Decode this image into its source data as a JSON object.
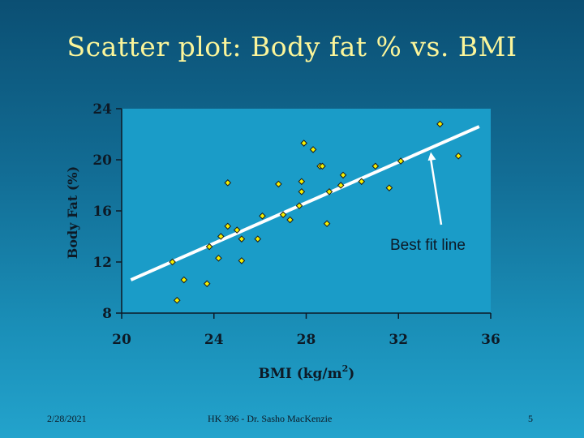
{
  "slide": {
    "title": "Scatter plot: Body fat % vs. BMI",
    "footer_date": "2/28/2021",
    "footer_credit": "HK 396 - Dr. Sasho MacKenzie",
    "page_number": "5"
  },
  "colors": {
    "title": "#fbf59a",
    "plot_background": "#1a9cc8",
    "axis": "#0d1a26",
    "fit_line": "#ffffff",
    "point_fill": "#f5f000",
    "point_outline": "#1a1a1a",
    "label_text": "#0d1a26"
  },
  "chart_data": {
    "type": "scatter",
    "title": "",
    "xlabel": "BMI (kg/m",
    "xlabel_superscript": "2",
    "xlabel_suffix": ")",
    "ylabel": "Body Fat (%)",
    "xlim": [
      20,
      36
    ],
    "ylim": [
      8,
      24
    ],
    "x_ticks": [
      20,
      24,
      28,
      32,
      36
    ],
    "y_ticks": [
      24,
      20,
      16,
      12,
      8
    ],
    "grid": false,
    "legend": "none",
    "points": [
      {
        "x": 22.2,
        "y": 12.0
      },
      {
        "x": 22.4,
        "y": 9.0
      },
      {
        "x": 22.7,
        "y": 10.6
      },
      {
        "x": 23.7,
        "y": 10.3
      },
      {
        "x": 23.8,
        "y": 13.2
      },
      {
        "x": 24.2,
        "y": 12.3
      },
      {
        "x": 24.3,
        "y": 14.0
      },
      {
        "x": 24.6,
        "y": 14.8
      },
      {
        "x": 24.6,
        "y": 18.2
      },
      {
        "x": 25.0,
        "y": 14.5
      },
      {
        "x": 25.2,
        "y": 13.8
      },
      {
        "x": 25.2,
        "y": 12.1
      },
      {
        "x": 25.9,
        "y": 13.8
      },
      {
        "x": 26.1,
        "y": 15.6
      },
      {
        "x": 26.8,
        "y": 18.1
      },
      {
        "x": 27.0,
        "y": 15.7
      },
      {
        "x": 27.3,
        "y": 15.3
      },
      {
        "x": 27.7,
        "y": 16.4
      },
      {
        "x": 27.8,
        "y": 17.5
      },
      {
        "x": 27.8,
        "y": 18.3
      },
      {
        "x": 27.9,
        "y": 21.3
      },
      {
        "x": 28.3,
        "y": 20.8
      },
      {
        "x": 28.6,
        "y": 19.5
      },
      {
        "x": 28.7,
        "y": 19.5
      },
      {
        "x": 28.9,
        "y": 15.0
      },
      {
        "x": 29.0,
        "y": 17.5
      },
      {
        "x": 29.5,
        "y": 18.0
      },
      {
        "x": 29.6,
        "y": 18.8
      },
      {
        "x": 30.4,
        "y": 18.3
      },
      {
        "x": 31.0,
        "y": 19.5
      },
      {
        "x": 31.6,
        "y": 17.8
      },
      {
        "x": 32.1,
        "y": 19.9
      },
      {
        "x": 33.8,
        "y": 22.8
      },
      {
        "x": 34.6,
        "y": 20.3
      }
    ],
    "fit_line": {
      "x": [
        20.4,
        35.5
      ],
      "y": [
        10.6,
        22.6
      ]
    },
    "annotation": {
      "text": "Best fit line",
      "points_to": {
        "x": 33.4,
        "y": 20.6
      }
    }
  }
}
